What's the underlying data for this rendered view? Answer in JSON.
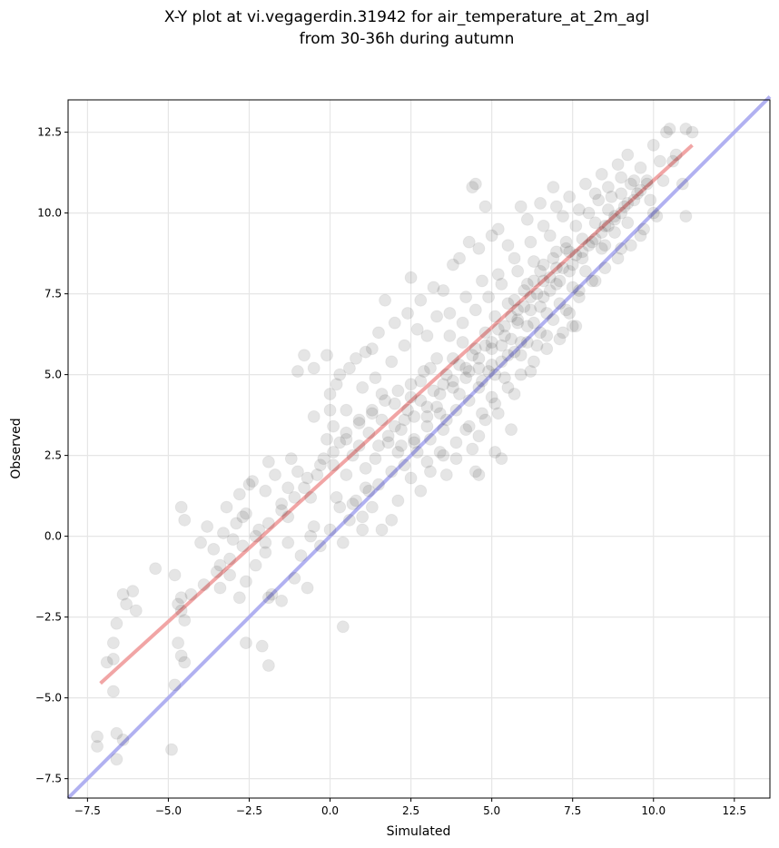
{
  "chart_data": {
    "type": "scatter",
    "title_line1": "X-Y plot at vi.vegagerdin.31942 for air_temperature_at_2m_agl",
    "title_line2": "from 30-36h during autumn",
    "xlabel": "Simulated",
    "ylabel": "Observed",
    "xlim": [
      -8.1,
      13.6
    ],
    "ylim": [
      -8.1,
      13.5
    ],
    "xticks": [
      -7.5,
      -5.0,
      -2.5,
      0.0,
      2.5,
      5.0,
      7.5,
      10.0,
      12.5
    ],
    "yticks": [
      -7.5,
      -5.0,
      -2.5,
      0.0,
      2.5,
      5.0,
      7.5,
      10.0,
      12.5
    ],
    "xtick_labels": [
      "−7.5",
      "−5.0",
      "−2.5",
      "0.0",
      "2.5",
      "5.0",
      "7.5",
      "10.0",
      "12.5"
    ],
    "ytick_labels": [
      "−7.5",
      "−5.0",
      "−2.5",
      "0.0",
      "2.5",
      "5.0",
      "7.5",
      "10.0",
      "12.5"
    ],
    "grid": true,
    "point_color": "#000000",
    "points": [
      [
        -7.2,
        -6.2
      ],
      [
        -7.2,
        -6.5
      ],
      [
        -6.6,
        -6.1
      ],
      [
        -6.6,
        -6.9
      ],
      [
        -6.4,
        -6.3
      ],
      [
        -6.7,
        -4.8
      ],
      [
        -6.7,
        -3.3
      ],
      [
        -6.6,
        -2.7
      ],
      [
        -6.7,
        -3.8
      ],
      [
        -6.9,
        -3.9
      ],
      [
        -6.4,
        -1.8
      ],
      [
        -6.1,
        -1.7
      ],
      [
        -6.3,
        -2.1
      ],
      [
        -6.0,
        -2.3
      ],
      [
        -5.4,
        -1.0
      ],
      [
        -4.8,
        -1.2
      ],
      [
        -4.7,
        -2.1
      ],
      [
        -4.6,
        -1.9
      ],
      [
        -4.6,
        -2.3
      ],
      [
        -4.5,
        -2.6
      ],
      [
        -4.7,
        -3.3
      ],
      [
        -4.6,
        -3.7
      ],
      [
        -4.5,
        -3.9
      ],
      [
        -4.8,
        -4.6
      ],
      [
        -4.9,
        -6.6
      ],
      [
        -4.6,
        0.9
      ],
      [
        -4.5,
        0.5
      ],
      [
        -4.0,
        -0.2
      ],
      [
        -3.8,
        0.3
      ],
      [
        -3.6,
        -0.4
      ],
      [
        -3.4,
        -0.9
      ],
      [
        -3.3,
        0.1
      ],
      [
        -3.2,
        0.9
      ],
      [
        -3.0,
        -0.1
      ],
      [
        -2.9,
        0.4
      ],
      [
        -2.8,
        1.3
      ],
      [
        -2.6,
        0.7
      ],
      [
        -2.5,
        1.6
      ],
      [
        -2.4,
        1.7
      ],
      [
        -2.2,
        0.2
      ],
      [
        -2.0,
        1.4
      ],
      [
        -1.9,
        2.3
      ],
      [
        -1.7,
        1.9
      ],
      [
        -1.5,
        1.0
      ],
      [
        -1.3,
        0.6
      ],
      [
        -1.2,
        2.4
      ],
      [
        -1.0,
        2.0
      ],
      [
        -0.8,
        1.5
      ],
      [
        -0.6,
        1.2
      ],
      [
        -0.5,
        0.3
      ],
      [
        -0.4,
        1.9
      ],
      [
        -0.2,
        2.4
      ],
      [
        -0.1,
        3.0
      ],
      [
        0.1,
        2.2
      ],
      [
        0.2,
        1.2
      ],
      [
        -3.4,
        -1.6
      ],
      [
        -3.1,
        -1.2
      ],
      [
        -2.8,
        -1.9
      ],
      [
        -2.6,
        -1.4
      ],
      [
        -2.3,
        -0.9
      ],
      [
        -2.0,
        -0.5
      ],
      [
        -1.8,
        -1.8
      ],
      [
        -1.5,
        -2.0
      ],
      [
        -1.3,
        -0.2
      ],
      [
        -1.1,
        -1.3
      ],
      [
        -0.9,
        -0.6
      ],
      [
        -0.7,
        -1.6
      ],
      [
        -0.6,
        0.0
      ],
      [
        -0.3,
        -0.3
      ],
      [
        0.0,
        0.2
      ],
      [
        0.3,
        0.9
      ],
      [
        0.4,
        -0.2
      ],
      [
        0.6,
        0.5
      ],
      [
        0.8,
        1.1
      ],
      [
        1.0,
        0.6
      ],
      [
        1.2,
        1.4
      ],
      [
        -2.6,
        -3.3
      ],
      [
        -2.1,
        -3.4
      ],
      [
        -1.9,
        -4.0
      ],
      [
        -1.9,
        -1.9
      ],
      [
        -2.7,
        0.6
      ],
      [
        -2.0,
        -0.2
      ],
      [
        -1.3,
        1.5
      ],
      [
        -0.5,
        3.7
      ],
      [
        0.0,
        3.9
      ],
      [
        0.1,
        3.4
      ],
      [
        0.3,
        2.9
      ],
      [
        0.5,
        3.2
      ],
      [
        0.7,
        2.5
      ],
      [
        0.9,
        3.5
      ],
      [
        1.1,
        2.1
      ],
      [
        1.3,
        3.8
      ],
      [
        1.5,
        2.8
      ],
      [
        1.6,
        4.4
      ],
      [
        1.8,
        3.1
      ],
      [
        2.0,
        4.1
      ],
      [
        2.1,
        2.6
      ],
      [
        2.3,
        3.6
      ],
      [
        2.5,
        4.3
      ],
      [
        2.6,
        3.0
      ],
      [
        2.8,
        4.8
      ],
      [
        3.0,
        3.4
      ],
      [
        3.1,
        5.2
      ],
      [
        3.3,
        4.0
      ],
      [
        3.5,
        4.7
      ],
      [
        3.6,
        3.6
      ],
      [
        3.8,
        5.5
      ],
      [
        4.0,
        4.4
      ],
      [
        4.1,
        6.0
      ],
      [
        4.3,
        5.1
      ],
      [
        4.5,
        5.8
      ],
      [
        4.6,
        4.6
      ],
      [
        4.8,
        6.3
      ],
      [
        5.0,
        5.3
      ],
      [
        5.1,
        6.8
      ],
      [
        5.3,
        5.9
      ],
      [
        5.5,
        7.2
      ],
      [
        5.6,
        6.1
      ],
      [
        5.8,
        6.7
      ],
      [
        6.0,
        7.6
      ],
      [
        6.1,
        6.5
      ],
      [
        6.3,
        7.9
      ],
      [
        6.5,
        7.1
      ],
      [
        6.6,
        8.4
      ],
      [
        6.8,
        7.6
      ],
      [
        7.0,
        8.8
      ],
      [
        7.1,
        7.9
      ],
      [
        7.3,
        9.1
      ],
      [
        7.5,
        8.4
      ],
      [
        7.6,
        9.6
      ],
      [
        7.8,
        8.8
      ],
      [
        8.0,
        10.0
      ],
      [
        8.1,
        9.1
      ],
      [
        8.3,
        10.4
      ],
      [
        8.5,
        9.6
      ],
      [
        8.6,
        10.8
      ],
      [
        8.8,
        9.9
      ],
      [
        9.0,
        11.1
      ],
      [
        9.1,
        10.2
      ],
      [
        9.3,
        10.9
      ],
      [
        9.5,
        10.6
      ],
      [
        9.6,
        11.4
      ],
      [
        9.8,
        11.0
      ],
      [
        10.0,
        12.1
      ],
      [
        10.2,
        11.6
      ],
      [
        10.4,
        12.5
      ],
      [
        10.5,
        12.6
      ],
      [
        10.7,
        11.8
      ],
      [
        10.9,
        10.9
      ],
      [
        11.0,
        12.6
      ],
      [
        11.2,
        12.5
      ],
      [
        11.0,
        9.9
      ],
      [
        10.0,
        10.0
      ],
      [
        9.6,
        9.3
      ],
      [
        9.0,
        8.9
      ],
      [
        8.5,
        9.0
      ],
      [
        8.2,
        7.9
      ],
      [
        7.7,
        7.6
      ],
      [
        7.4,
        6.9
      ],
      [
        7.2,
        6.3
      ],
      [
        7.6,
        6.5
      ],
      [
        6.7,
        6.2
      ],
      [
        6.4,
        5.9
      ],
      [
        6.2,
        5.1
      ],
      [
        5.9,
        5.6
      ],
      [
        5.7,
        4.4
      ],
      [
        5.4,
        4.9
      ],
      [
        5.2,
        3.8
      ],
      [
        5.0,
        4.3
      ],
      [
        4.8,
        3.6
      ],
      [
        4.6,
        3.1
      ],
      [
        4.4,
        2.7
      ],
      [
        4.2,
        3.3
      ],
      [
        4.5,
        2.0
      ],
      [
        4.6,
        1.9
      ],
      [
        3.9,
        2.4
      ],
      [
        3.6,
        1.9
      ],
      [
        3.4,
        2.6
      ],
      [
        3.0,
        2.3
      ],
      [
        2.8,
        1.4
      ],
      [
        2.5,
        1.8
      ],
      [
        2.1,
        1.1
      ],
      [
        1.9,
        0.5
      ],
      [
        1.6,
        0.2
      ],
      [
        1.3,
        0.9
      ],
      [
        1.0,
        0.2
      ],
      [
        0.4,
        -2.8
      ],
      [
        5.3,
        2.4
      ],
      [
        5.1,
        2.6
      ],
      [
        5.6,
        3.3
      ],
      [
        4.4,
        10.8
      ],
      [
        4.5,
        10.9
      ],
      [
        4.8,
        10.2
      ],
      [
        5.0,
        9.3
      ],
      [
        5.2,
        9.5
      ],
      [
        4.6,
        8.9
      ],
      [
        4.3,
        9.1
      ],
      [
        4.0,
        8.6
      ],
      [
        3.8,
        8.4
      ],
      [
        3.5,
        7.6
      ],
      [
        3.2,
        7.7
      ],
      [
        2.8,
        7.3
      ],
      [
        2.5,
        8.0
      ],
      [
        2.4,
        6.9
      ],
      [
        2.0,
        6.6
      ],
      [
        1.7,
        7.3
      ],
      [
        1.5,
        6.3
      ],
      [
        1.3,
        5.8
      ],
      [
        1.1,
        5.7
      ],
      [
        0.8,
        5.5
      ],
      [
        0.6,
        5.2
      ],
      [
        0.3,
        5.0
      ],
      [
        -0.1,
        5.6
      ],
      [
        -0.8,
        5.6
      ],
      [
        -0.5,
        5.2
      ],
      [
        -1.0,
        5.1
      ],
      [
        0.0,
        4.4
      ],
      [
        0.2,
        4.7
      ],
      [
        0.5,
        3.9
      ],
      [
        1.0,
        4.6
      ],
      [
        1.4,
        4.9
      ],
      [
        1.9,
        5.4
      ],
      [
        2.3,
        5.9
      ],
      [
        2.7,
        6.4
      ],
      [
        3.0,
        6.2
      ],
      [
        3.3,
        6.8
      ],
      [
        3.7,
        6.9
      ],
      [
        4.2,
        7.4
      ],
      [
        4.7,
        7.9
      ],
      [
        5.2,
        8.1
      ],
      [
        5.7,
        8.6
      ],
      [
        6.2,
        9.1
      ],
      [
        6.6,
        9.6
      ],
      [
        7.0,
        10.2
      ],
      [
        7.4,
        10.5
      ],
      [
        7.9,
        10.9
      ],
      [
        8.4,
        11.2
      ],
      [
        8.9,
        11.5
      ],
      [
        9.2,
        11.8
      ],
      [
        5.9,
        10.2
      ],
      [
        6.1,
        9.8
      ],
      [
        6.5,
        10.3
      ],
      [
        6.9,
        10.8
      ],
      [
        5.5,
        9.0
      ],
      [
        5.8,
        8.2
      ],
      [
        6.3,
        8.5
      ],
      [
        6.8,
        9.3
      ],
      [
        7.2,
        9.9
      ],
      [
        7.7,
        10.1
      ],
      [
        8.2,
        10.6
      ],
      [
        8.7,
        10.5
      ],
      [
        9.4,
        11.0
      ],
      [
        9.9,
        10.4
      ],
      [
        10.3,
        11.0
      ],
      [
        10.6,
        11.6
      ],
      [
        9.2,
        9.7
      ],
      [
        8.8,
        9.4
      ],
      [
        8.4,
        8.9
      ],
      [
        7.9,
        8.2
      ],
      [
        7.5,
        7.7
      ],
      [
        7.1,
        7.2
      ],
      [
        6.7,
        6.9
      ],
      [
        6.3,
        6.6
      ],
      [
        5.9,
        6.0
      ],
      [
        5.5,
        5.6
      ],
      [
        5.1,
        5.0
      ],
      [
        4.7,
        4.8
      ],
      [
        4.3,
        4.2
      ],
      [
        3.9,
        3.9
      ],
      [
        3.5,
        3.3
      ],
      [
        3.1,
        3.0
      ],
      [
        2.7,
        2.6
      ],
      [
        2.3,
        2.2
      ],
      [
        1.9,
        2.0
      ],
      [
        1.5,
        1.6
      ],
      [
        1.1,
        1.5
      ],
      [
        0.7,
        1.0
      ],
      [
        0.5,
        1.9
      ],
      [
        0.9,
        2.8
      ],
      [
        1.2,
        3.2
      ],
      [
        1.6,
        3.6
      ],
      [
        2.0,
        3.4
      ],
      [
        2.4,
        3.9
      ],
      [
        2.8,
        4.2
      ],
      [
        3.2,
        4.5
      ],
      [
        3.6,
        5.0
      ],
      [
        4.0,
        5.3
      ],
      [
        4.4,
        5.6
      ],
      [
        4.8,
        5.9
      ],
      [
        5.2,
        6.4
      ],
      [
        5.6,
        6.8
      ],
      [
        6.0,
        7.1
      ],
      [
        6.4,
        7.5
      ],
      [
        6.8,
        8.0
      ],
      [
        7.2,
        8.3
      ],
      [
        7.6,
        8.7
      ],
      [
        8.0,
        9.0
      ],
      [
        8.4,
        9.4
      ],
      [
        8.8,
        9.8
      ],
      [
        9.2,
        10.3
      ],
      [
        9.6,
        10.7
      ],
      [
        1.4,
        2.4
      ],
      [
        1.8,
        2.9
      ],
      [
        2.2,
        3.3
      ],
      [
        2.6,
        3.7
      ],
      [
        3.0,
        4.0
      ],
      [
        3.4,
        4.4
      ],
      [
        3.8,
        4.8
      ],
      [
        4.2,
        5.2
      ],
      [
        4.6,
        5.5
      ],
      [
        5.0,
        5.8
      ],
      [
        5.4,
        6.2
      ],
      [
        5.8,
        6.6
      ],
      [
        6.2,
        7.0
      ],
      [
        6.6,
        7.4
      ],
      [
        7.0,
        7.8
      ],
      [
        7.4,
        8.2
      ],
      [
        7.8,
        8.6
      ],
      [
        8.2,
        9.2
      ],
      [
        8.6,
        9.6
      ],
      [
        9.0,
        10.0
      ],
      [
        3.7,
        6.2
      ],
      [
        4.1,
        6.6
      ],
      [
        4.5,
        7.0
      ],
      [
        4.9,
        7.4
      ],
      [
        5.3,
        7.8
      ],
      [
        5.7,
        7.3
      ],
      [
        6.1,
        7.8
      ],
      [
        6.5,
        8.2
      ],
      [
        6.9,
        8.6
      ],
      [
        7.3,
        8.9
      ],
      [
        3.3,
        5.5
      ],
      [
        2.9,
        5.1
      ],
      [
        2.5,
        4.7
      ],
      [
        2.1,
        4.5
      ],
      [
        1.7,
        4.2
      ],
      [
        1.3,
        3.9
      ],
      [
        0.9,
        3.6
      ],
      [
        0.5,
        3.0
      ],
      [
        0.1,
        2.6
      ],
      [
        -0.3,
        2.2
      ],
      [
        -0.7,
        1.8
      ],
      [
        -1.1,
        1.2
      ],
      [
        -1.5,
        0.8
      ],
      [
        -1.9,
        0.4
      ],
      [
        -2.3,
        0.0
      ],
      [
        -2.7,
        -0.3
      ],
      [
        -3.1,
        -0.7
      ],
      [
        -3.5,
        -1.1
      ],
      [
        -3.9,
        -1.5
      ],
      [
        -4.3,
        -1.8
      ],
      [
        4.9,
        5.1
      ],
      [
        5.3,
        5.4
      ],
      [
        5.7,
        5.7
      ],
      [
        6.1,
        6.0
      ],
      [
        6.5,
        6.3
      ],
      [
        6.9,
        6.7
      ],
      [
        7.3,
        7.0
      ],
      [
        7.7,
        7.4
      ],
      [
        8.1,
        7.9
      ],
      [
        8.5,
        8.3
      ],
      [
        8.9,
        8.6
      ],
      [
        9.3,
        9.0
      ],
      [
        9.7,
        9.5
      ],
      [
        10.1,
        9.9
      ],
      [
        3.1,
        2.0
      ],
      [
        3.5,
        2.5
      ],
      [
        3.9,
        2.9
      ],
      [
        4.3,
        3.4
      ],
      [
        4.7,
        3.8
      ],
      [
        5.1,
        4.1
      ],
      [
        5.5,
        4.6
      ],
      [
        5.9,
        5.0
      ],
      [
        6.3,
        5.4
      ],
      [
        6.7,
        5.8
      ],
      [
        7.1,
        6.1
      ],
      [
        7.5,
        6.5
      ],
      [
        2.2,
        2.8
      ],
      [
        2.6,
        2.9
      ],
      [
        3.0,
        3.7
      ],
      [
        3.4,
        3.8
      ],
      [
        3.8,
        4.6
      ],
      [
        4.2,
        4.9
      ],
      [
        4.6,
        5.2
      ],
      [
        5.0,
        6.0
      ],
      [
        5.4,
        6.5
      ],
      [
        5.8,
        7.0
      ],
      [
        6.2,
        7.4
      ],
      [
        6.6,
        7.9
      ],
      [
        7.0,
        8.3
      ],
      [
        7.4,
        8.8
      ],
      [
        7.8,
        9.2
      ],
      [
        8.2,
        9.7
      ],
      [
        8.6,
        10.1
      ],
      [
        9.0,
        10.6
      ],
      [
        9.4,
        10.4
      ],
      [
        9.8,
        10.9
      ]
    ],
    "fit_line": {
      "x": [
        -7.1,
        11.2
      ],
      "y": [
        -4.55,
        12.1
      ],
      "color": "#f0a0a0"
    },
    "identity_line": {
      "x": [
        -8.1,
        13.6
      ],
      "y": [
        -8.1,
        13.6
      ],
      "color": "#a8a8f0"
    }
  }
}
